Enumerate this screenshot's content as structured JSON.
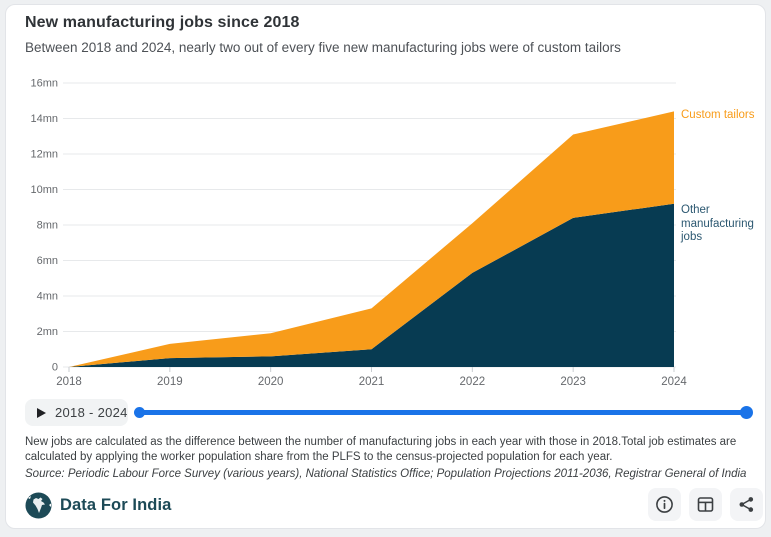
{
  "card": {
    "title": "New manufacturing jobs since 2018",
    "subtitle": "Between 2018 and 2024, nearly two out of every five new manufacturing jobs were of custom tailors"
  },
  "chart_data": {
    "type": "area",
    "stacked": true,
    "x": [
      2018,
      2019,
      2020,
      2021,
      2022,
      2023,
      2024
    ],
    "series": [
      {
        "name": "Other manufacturing jobs",
        "values": [
          0,
          0.5,
          0.6,
          1.0,
          5.3,
          8.4,
          9.2
        ],
        "color": "#073b52",
        "label_color": "#2c5871"
      },
      {
        "name": "Custom tailors",
        "values": [
          0,
          0.8,
          1.3,
          2.3,
          2.8,
          4.7,
          5.2
        ],
        "color": "#f89c1a",
        "label_color": "#f89c1a"
      }
    ],
    "title": "New manufacturing jobs since 2018",
    "xlabel": "",
    "ylabel": "",
    "ylim": [
      0,
      16
    ],
    "ytick_step": 2,
    "ytick_suffix": "mn",
    "grid": true,
    "legend_position": "right-edge-labels"
  },
  "controls": {
    "range_label": "2018 - 2024",
    "play_icon": "play-triangle"
  },
  "footnote": {
    "line1": "New jobs are calculated as the difference between the number of manufacturing jobs in each year with those in 2018.Total job estimates are calculated by applying the worker population share from the PLFS to the census-projected population for each year.",
    "source": "Source: Periodic Labour Force Survey (various years), National Statistics Office; Population Projections 2011-2036, Registrar General of India"
  },
  "footer": {
    "brand": "Data For India",
    "buttons": [
      "info",
      "table",
      "share"
    ]
  },
  "colors": {
    "orange": "#f89c1a",
    "navy": "#073b52",
    "grid": "#e7e9eb",
    "axis_text": "#66696d",
    "slider_blue": "#1a73e8",
    "brand_teal": "#1d4a57",
    "icon_gray": "#3c4043"
  }
}
